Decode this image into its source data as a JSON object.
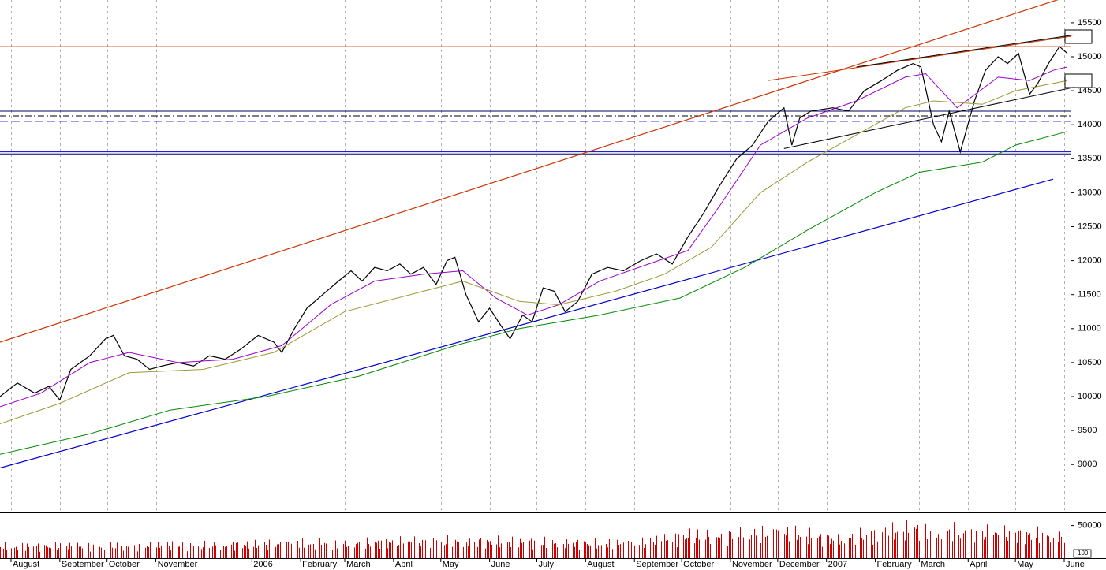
{
  "chart_data": {
    "type": "line",
    "title": "",
    "xlabel": "",
    "ylabel": "",
    "grid": true,
    "x_range": [
      "2005-07-25",
      "2007-06-05"
    ],
    "ylim": [
      8600,
      15900
    ],
    "y_ticks": [
      9000,
      9500,
      10000,
      10500,
      11000,
      11500,
      12000,
      12500,
      13000,
      13500,
      14000,
      14500,
      15000,
      15500
    ],
    "x_ticks": [
      {
        "date": "2005-08-01",
        "label": "August"
      },
      {
        "date": "2005-09-01",
        "label": "September"
      },
      {
        "date": "2005-10-01",
        "label": "October"
      },
      {
        "date": "2005-11-01",
        "label": "November"
      },
      {
        "date": "2006-01-01",
        "label": "2006"
      },
      {
        "date": "2006-02-01",
        "label": "February"
      },
      {
        "date": "2006-03-01",
        "label": "March"
      },
      {
        "date": "2006-04-01",
        "label": "April"
      },
      {
        "date": "2006-05-01",
        "label": "May"
      },
      {
        "date": "2006-06-01",
        "label": "June"
      },
      {
        "date": "2006-07-01",
        "label": "July"
      },
      {
        "date": "2006-08-01",
        "label": "August"
      },
      {
        "date": "2006-09-01",
        "label": "September"
      },
      {
        "date": "2006-10-01",
        "label": "October"
      },
      {
        "date": "2006-11-01",
        "label": "November"
      },
      {
        "date": "2006-12-01",
        "label": "December"
      },
      {
        "date": "2007-01-01",
        "label": "2007"
      },
      {
        "date": "2007-02-01",
        "label": "February"
      },
      {
        "date": "2007-03-01",
        "label": "March"
      },
      {
        "date": "2007-04-01",
        "label": "April"
      },
      {
        "date": "2007-05-01",
        "label": "May"
      },
      {
        "date": "2007-06-01",
        "label": "June"
      }
    ],
    "series": [
      {
        "key": "price",
        "color": "#000000",
        "points": [
          [
            "2005-07-25",
            10000
          ],
          [
            "2005-08-05",
            10200
          ],
          [
            "2005-08-16",
            10050
          ],
          [
            "2005-08-25",
            10150
          ],
          [
            "2005-09-01",
            9950
          ],
          [
            "2005-09-08",
            10400
          ],
          [
            "2005-09-20",
            10600
          ],
          [
            "2005-09-30",
            10850
          ],
          [
            "2005-10-05",
            10900
          ],
          [
            "2005-10-12",
            10600
          ],
          [
            "2005-10-20",
            10550
          ],
          [
            "2005-10-28",
            10400
          ],
          [
            "2005-11-05",
            10450
          ],
          [
            "2005-11-15",
            10500
          ],
          [
            "2005-11-25",
            10450
          ],
          [
            "2005-12-05",
            10600
          ],
          [
            "2005-12-15",
            10550
          ],
          [
            "2005-12-25",
            10700
          ],
          [
            "2006-01-05",
            10900
          ],
          [
            "2006-01-15",
            10800
          ],
          [
            "2006-01-20",
            10650
          ],
          [
            "2006-01-28",
            11000
          ],
          [
            "2006-02-05",
            11300
          ],
          [
            "2006-02-15",
            11500
          ],
          [
            "2006-02-25",
            11700
          ],
          [
            "2006-03-05",
            11850
          ],
          [
            "2006-03-12",
            11700
          ],
          [
            "2006-03-20",
            11900
          ],
          [
            "2006-03-28",
            11850
          ],
          [
            "2006-04-05",
            11950
          ],
          [
            "2006-04-12",
            11800
          ],
          [
            "2006-04-20",
            11900
          ],
          [
            "2006-04-28",
            11650
          ],
          [
            "2006-05-05",
            12000
          ],
          [
            "2006-05-10",
            12050
          ],
          [
            "2006-05-17",
            11500
          ],
          [
            "2006-05-25",
            11100
          ],
          [
            "2006-06-01",
            11300
          ],
          [
            "2006-06-08",
            11050
          ],
          [
            "2006-06-14",
            10850
          ],
          [
            "2006-06-22",
            11200
          ],
          [
            "2006-06-28",
            11100
          ],
          [
            "2006-07-05",
            11600
          ],
          [
            "2006-07-12",
            11550
          ],
          [
            "2006-07-19",
            11250
          ],
          [
            "2006-07-27",
            11400
          ],
          [
            "2006-08-05",
            11800
          ],
          [
            "2006-08-15",
            11900
          ],
          [
            "2006-08-25",
            11850
          ],
          [
            "2006-09-05",
            12000
          ],
          [
            "2006-09-15",
            12100
          ],
          [
            "2006-09-25",
            11950
          ],
          [
            "2006-10-05",
            12350
          ],
          [
            "2006-10-15",
            12700
          ],
          [
            "2006-10-25",
            13100
          ],
          [
            "2006-11-05",
            13500
          ],
          [
            "2006-11-15",
            13700
          ],
          [
            "2006-11-25",
            14050
          ],
          [
            "2006-12-05",
            14250
          ],
          [
            "2006-12-10",
            13700
          ],
          [
            "2006-12-15",
            14100
          ],
          [
            "2006-12-22",
            14200
          ],
          [
            "2007-01-05",
            14250
          ],
          [
            "2007-01-15",
            14200
          ],
          [
            "2007-01-25",
            14500
          ],
          [
            "2007-02-05",
            14650
          ],
          [
            "2007-02-15",
            14800
          ],
          [
            "2007-02-25",
            14900
          ],
          [
            "2007-03-02",
            14850
          ],
          [
            "2007-03-10",
            14000
          ],
          [
            "2007-03-15",
            13750
          ],
          [
            "2007-03-20",
            14200
          ],
          [
            "2007-03-27",
            13600
          ],
          [
            "2007-04-05",
            14350
          ],
          [
            "2007-04-12",
            14800
          ],
          [
            "2007-04-20",
            15000
          ],
          [
            "2007-04-26",
            14900
          ],
          [
            "2007-05-03",
            15050
          ],
          [
            "2007-05-10",
            14450
          ],
          [
            "2007-05-15",
            14600
          ],
          [
            "2007-05-22",
            14900
          ],
          [
            "2007-05-29",
            15150
          ],
          [
            "2007-06-03",
            15050
          ]
        ]
      },
      {
        "key": "ma_short",
        "color": "#9900cc",
        "points": [
          [
            "2005-07-25",
            9850
          ],
          [
            "2005-08-20",
            10050
          ],
          [
            "2005-09-20",
            10500
          ],
          [
            "2005-10-15",
            10650
          ],
          [
            "2005-11-15",
            10500
          ],
          [
            "2005-12-20",
            10550
          ],
          [
            "2006-01-20",
            10750
          ],
          [
            "2006-02-20",
            11350
          ],
          [
            "2006-03-20",
            11700
          ],
          [
            "2006-04-20",
            11800
          ],
          [
            "2006-05-15",
            11850
          ],
          [
            "2006-06-05",
            11450
          ],
          [
            "2006-06-25",
            11200
          ],
          [
            "2006-07-15",
            11350
          ],
          [
            "2006-08-10",
            11700
          ],
          [
            "2006-09-10",
            11950
          ],
          [
            "2006-10-05",
            12150
          ],
          [
            "2006-10-25",
            12800
          ],
          [
            "2006-11-20",
            13700
          ],
          [
            "2006-12-20",
            14100
          ],
          [
            "2007-01-20",
            14350
          ],
          [
            "2007-02-20",
            14700
          ],
          [
            "2007-03-05",
            14750
          ],
          [
            "2007-03-25",
            14250
          ],
          [
            "2007-04-20",
            14700
          ],
          [
            "2007-05-10",
            14650
          ],
          [
            "2007-05-25",
            14800
          ],
          [
            "2007-06-03",
            14850
          ]
        ]
      },
      {
        "key": "ma_mid",
        "color": "#999933",
        "points": [
          [
            "2005-07-25",
            9600
          ],
          [
            "2005-09-01",
            9900
          ],
          [
            "2005-10-15",
            10350
          ],
          [
            "2005-12-01",
            10400
          ],
          [
            "2006-01-15",
            10650
          ],
          [
            "2006-03-01",
            11250
          ],
          [
            "2006-04-20",
            11550
          ],
          [
            "2006-05-15",
            11700
          ],
          [
            "2006-06-20",
            11400
          ],
          [
            "2006-07-15",
            11350
          ],
          [
            "2006-08-20",
            11550
          ],
          [
            "2006-09-20",
            11800
          ],
          [
            "2006-10-20",
            12200
          ],
          [
            "2006-11-20",
            13000
          ],
          [
            "2006-12-20",
            13450
          ],
          [
            "2007-01-20",
            13850
          ],
          [
            "2007-02-20",
            14250
          ],
          [
            "2007-03-10",
            14350
          ],
          [
            "2007-04-10",
            14300
          ],
          [
            "2007-05-01",
            14500
          ],
          [
            "2007-06-03",
            14650
          ]
        ]
      },
      {
        "key": "ma_long",
        "color": "#008800",
        "points": [
          [
            "2005-07-25",
            9150
          ],
          [
            "2005-09-20",
            9450
          ],
          [
            "2005-11-10",
            9800
          ],
          [
            "2006-01-10",
            10000
          ],
          [
            "2006-03-10",
            10300
          ],
          [
            "2006-05-10",
            10750
          ],
          [
            "2006-06-20",
            11000
          ],
          [
            "2006-08-10",
            11200
          ],
          [
            "2006-09-30",
            11450
          ],
          [
            "2006-11-10",
            11900
          ],
          [
            "2006-12-20",
            12450
          ],
          [
            "2007-02-01",
            13000
          ],
          [
            "2007-03-01",
            13300
          ],
          [
            "2007-04-10",
            13450
          ],
          [
            "2007-05-01",
            13700
          ],
          [
            "2007-06-03",
            13900
          ]
        ]
      }
    ],
    "lines": [
      {
        "key": "upper-channel-line",
        "color": "#cc3300",
        "width": 1.2,
        "from": [
          "2005-07-25",
          10800
        ],
        "to": [
          "2007-06-05",
          15900
        ]
      },
      {
        "key": "lower-trend-line",
        "color": "#0000cc",
        "width": 1.2,
        "from": [
          "2005-07-25",
          8950
        ],
        "to": [
          "2007-05-25",
          13200
        ]
      },
      {
        "key": "resistance-line",
        "color": "#cc3300",
        "width": 1,
        "from": [
          "2005-07-25",
          15150
        ],
        "to": [
          "2007-06-05",
          15150
        ]
      },
      {
        "key": "wedge-upper-line",
        "color": "#cc3300",
        "width": 1,
        "from": [
          "2006-11-25",
          14650
        ],
        "to": [
          "2007-06-05",
          15300
        ]
      },
      {
        "key": "wedge-upper-black-line",
        "color": "#000000",
        "width": 1,
        "from": [
          "2007-01-20",
          14850
        ],
        "to": [
          "2007-06-07",
          15320
        ]
      },
      {
        "key": "wedge-lower-line",
        "color": "#000000",
        "width": 1,
        "from": [
          "2006-12-05",
          13650
        ],
        "to": [
          "2007-06-07",
          14550
        ]
      },
      {
        "key": "support-line-upper",
        "color": "#000066",
        "width": 1,
        "from": [
          "2005-07-25",
          14200
        ],
        "to": [
          "2007-06-08",
          14200
        ]
      },
      {
        "key": "dash-dot-line",
        "color": "#000000",
        "width": 1,
        "dash": "8,3,2,3",
        "from": [
          "2005-07-25",
          14130
        ],
        "to": [
          "2007-06-08",
          14130
        ]
      },
      {
        "key": "dashed-blue-line",
        "color": "#0000cc",
        "width": 1,
        "dash": "10,5",
        "from": [
          "2005-07-25",
          14050
        ],
        "to": [
          "2007-06-08",
          14050
        ]
      },
      {
        "key": "support-line-lower-1",
        "color": "#0000cc",
        "width": 1,
        "from": [
          "2005-07-25",
          13600
        ],
        "to": [
          "2007-06-08",
          13600
        ]
      },
      {
        "key": "support-line-lower-2",
        "color": "#000066",
        "width": 1,
        "from": [
          "2005-07-25",
          13570
        ],
        "to": [
          "2007-06-08",
          13570
        ]
      }
    ],
    "volume": {
      "ylim": [
        0,
        70000
      ],
      "y_ticks": [
        50000
      ],
      "scale_label": "100",
      "color": "#cc0000",
      "levels": [
        [
          "2005-07-25",
          17000
        ],
        [
          "2006-01-01",
          20000
        ],
        [
          "2006-05-15",
          25000
        ],
        [
          "2006-09-01",
          21000
        ],
        [
          "2006-10-05",
          33000
        ],
        [
          "2006-12-10",
          37000
        ],
        [
          "2007-01-05",
          28000
        ],
        [
          "2007-03-01",
          44000
        ],
        [
          "2007-04-01",
          37000
        ],
        [
          "2007-06-03",
          33000
        ]
      ]
    }
  }
}
